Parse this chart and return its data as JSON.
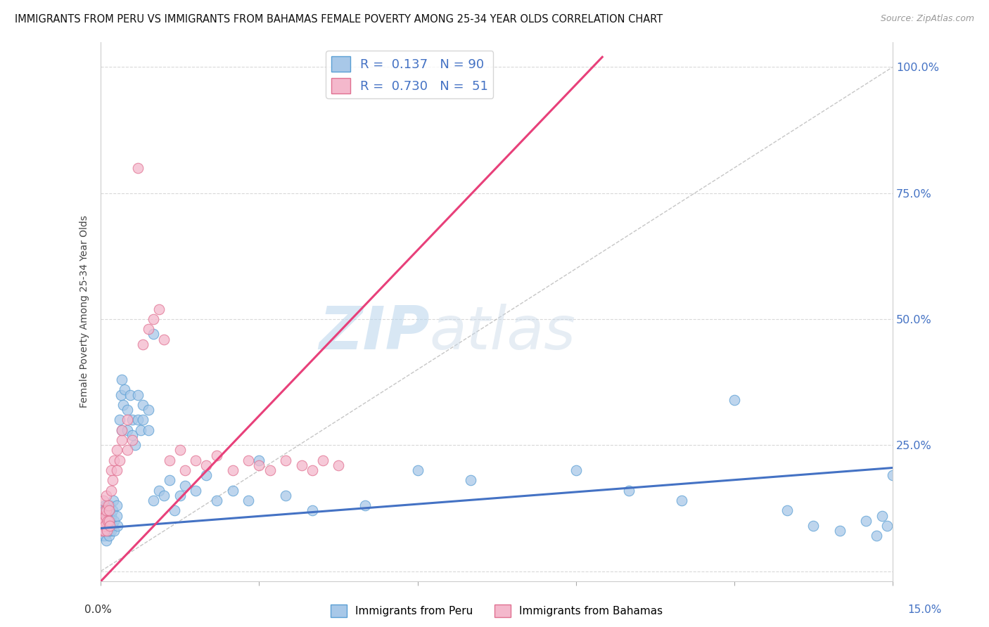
{
  "title": "IMMIGRANTS FROM PERU VS IMMIGRANTS FROM BAHAMAS FEMALE POVERTY AMONG 25-34 YEAR OLDS CORRELATION CHART",
  "source": "Source: ZipAtlas.com",
  "ylabel": "Female Poverty Among 25-34 Year Olds",
  "yticks": [
    0.0,
    0.25,
    0.5,
    0.75,
    1.0
  ],
  "ytick_labels": [
    "",
    "25.0%",
    "50.0%",
    "75.0%",
    "100.0%"
  ],
  "xlim": [
    0.0,
    0.15
  ],
  "ylim": [
    -0.02,
    1.05
  ],
  "peru_color": "#a8c8e8",
  "peru_edge_color": "#5a9fd4",
  "bahamas_color": "#f4b8cc",
  "bahamas_edge_color": "#e07090",
  "peru_R": 0.137,
  "peru_N": 90,
  "bahamas_R": 0.73,
  "bahamas_N": 51,
  "peru_line_color": "#4472c4",
  "bahamas_line_color": "#e8407a",
  "ref_line_color": "#b8b8b8",
  "watermark_zip": "ZIP",
  "watermark_atlas": "atlas",
  "legend_label_peru": "Immigrants from Peru",
  "legend_label_bahamas": "Immigrants from Bahamas",
  "background_color": "#ffffff",
  "grid_color": "#d0d0d0",
  "tick_label_color_right": "#4472c4",
  "peru_line_x0": 0.0,
  "peru_line_y0": 0.085,
  "peru_line_x1": 0.15,
  "peru_line_y1": 0.205,
  "bahamas_line_x0": 0.0,
  "bahamas_line_y0": -0.02,
  "bahamas_line_x1": 0.095,
  "bahamas_line_y1": 1.02,
  "peru_scatter_x": [
    0.0002,
    0.0003,
    0.0004,
    0.0005,
    0.0005,
    0.0006,
    0.0006,
    0.0007,
    0.0007,
    0.0008,
    0.0008,
    0.0009,
    0.0009,
    0.001,
    0.001,
    0.001,
    0.001,
    0.0012,
    0.0012,
    0.0013,
    0.0013,
    0.0014,
    0.0014,
    0.0015,
    0.0015,
    0.0016,
    0.0016,
    0.0017,
    0.0017,
    0.0018,
    0.002,
    0.002,
    0.0022,
    0.0022,
    0.0023,
    0.0025,
    0.0025,
    0.003,
    0.003,
    0.0032,
    0.0035,
    0.0038,
    0.004,
    0.004,
    0.0042,
    0.0045,
    0.005,
    0.005,
    0.0055,
    0.006,
    0.006,
    0.0065,
    0.007,
    0.007,
    0.0075,
    0.008,
    0.008,
    0.009,
    0.009,
    0.01,
    0.01,
    0.011,
    0.012,
    0.013,
    0.014,
    0.015,
    0.016,
    0.018,
    0.02,
    0.022,
    0.025,
    0.028,
    0.03,
    0.035,
    0.04,
    0.05,
    0.06,
    0.07,
    0.09,
    0.1,
    0.11,
    0.12,
    0.13,
    0.135,
    0.14,
    0.145,
    0.147,
    0.148,
    0.149,
    0.15
  ],
  "peru_scatter_y": [
    0.08,
    0.07,
    0.1,
    0.09,
    0.12,
    0.08,
    0.11,
    0.07,
    0.13,
    0.09,
    0.08,
    0.1,
    0.12,
    0.08,
    0.11,
    0.06,
    0.09,
    0.1,
    0.13,
    0.08,
    0.11,
    0.09,
    0.12,
    0.07,
    0.1,
    0.08,
    0.11,
    0.09,
    0.13,
    0.1,
    0.08,
    0.11,
    0.12,
    0.09,
    0.14,
    0.1,
    0.08,
    0.11,
    0.13,
    0.09,
    0.3,
    0.35,
    0.38,
    0.28,
    0.33,
    0.36,
    0.32,
    0.28,
    0.35,
    0.3,
    0.27,
    0.25,
    0.35,
    0.3,
    0.28,
    0.33,
    0.3,
    0.32,
    0.28,
    0.47,
    0.14,
    0.16,
    0.15,
    0.18,
    0.12,
    0.15,
    0.17,
    0.16,
    0.19,
    0.14,
    0.16,
    0.14,
    0.22,
    0.15,
    0.12,
    0.13,
    0.2,
    0.18,
    0.2,
    0.16,
    0.14,
    0.34,
    0.12,
    0.09,
    0.08,
    0.1,
    0.07,
    0.11,
    0.09,
    0.19
  ],
  "bahamas_scatter_x": [
    0.0002,
    0.0003,
    0.0004,
    0.0005,
    0.0005,
    0.0006,
    0.0007,
    0.0007,
    0.0008,
    0.0009,
    0.001,
    0.001,
    0.0012,
    0.0013,
    0.0014,
    0.0015,
    0.0016,
    0.0017,
    0.002,
    0.002,
    0.0022,
    0.0025,
    0.003,
    0.003,
    0.0035,
    0.004,
    0.004,
    0.005,
    0.005,
    0.006,
    0.007,
    0.008,
    0.009,
    0.01,
    0.011,
    0.012,
    0.013,
    0.015,
    0.016,
    0.018,
    0.02,
    0.022,
    0.025,
    0.028,
    0.03,
    0.032,
    0.035,
    0.038,
    0.04,
    0.042,
    0.045
  ],
  "bahamas_scatter_y": [
    0.08,
    0.1,
    0.09,
    0.11,
    0.14,
    0.08,
    0.12,
    0.1,
    0.09,
    0.11,
    0.12,
    0.15,
    0.08,
    0.1,
    0.13,
    0.1,
    0.12,
    0.09,
    0.16,
    0.2,
    0.18,
    0.22,
    0.24,
    0.2,
    0.22,
    0.26,
    0.28,
    0.24,
    0.3,
    0.26,
    0.8,
    0.45,
    0.48,
    0.5,
    0.52,
    0.46,
    0.22,
    0.24,
    0.2,
    0.22,
    0.21,
    0.23,
    0.2,
    0.22,
    0.21,
    0.2,
    0.22,
    0.21,
    0.2,
    0.22,
    0.21
  ]
}
